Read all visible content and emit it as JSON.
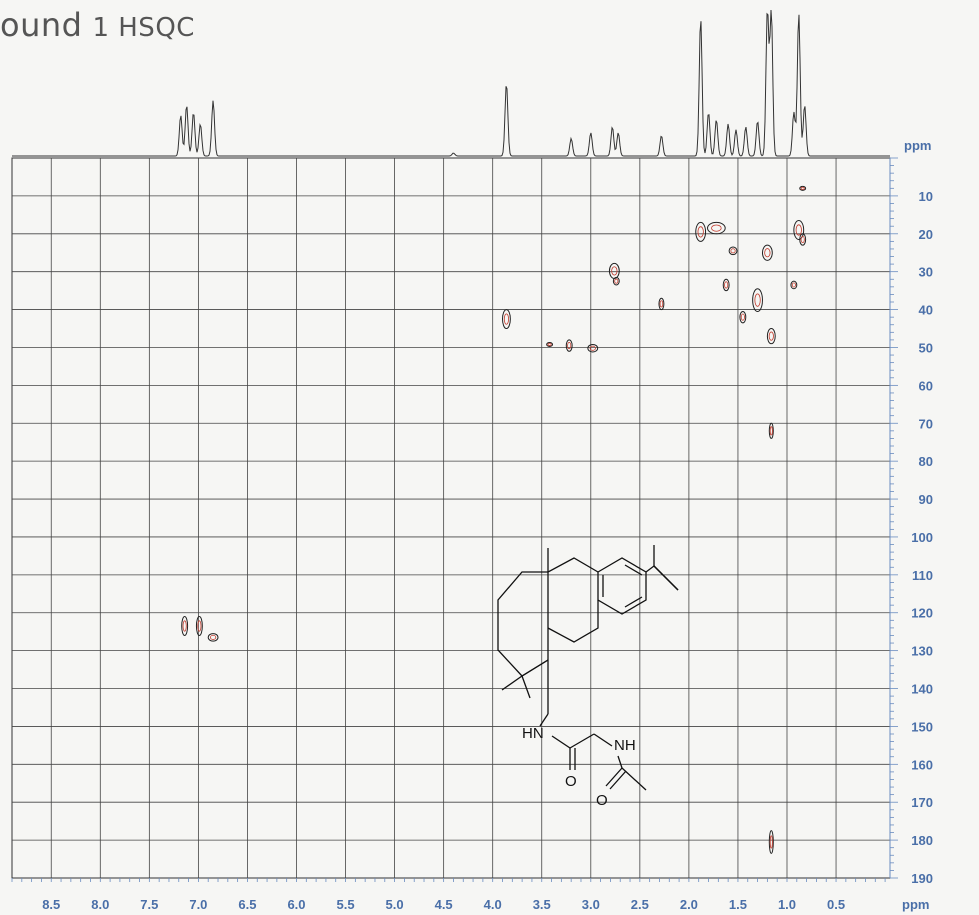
{
  "title": {
    "part1": "ound",
    "part2": "1 HSQC"
  },
  "chart_data": {
    "type": "heatmap",
    "title": "ound  1 HSQC",
    "x_axis": {
      "label": "ppm",
      "reversed": true,
      "range": [
        8.9,
        -0.05
      ],
      "ticks": [
        "8.5",
        "8.0",
        "7.5",
        "7.0",
        "6.5",
        "6.0",
        "5.5",
        "5.0",
        "4.5",
        "4.0",
        "3.5",
        "3.0",
        "2.5",
        "2.0",
        "1.5",
        "1.0",
        "0.5"
      ]
    },
    "y_axis": {
      "label": "ppm",
      "range": [
        0,
        190
      ],
      "side": "right",
      "ticks": [
        "10",
        "20",
        "30",
        "40",
        "50",
        "60",
        "70",
        "80",
        "90",
        "100",
        "110",
        "120",
        "130",
        "140",
        "150",
        "160",
        "170",
        "180",
        "190"
      ]
    },
    "grid": true,
    "proton_projection_peaks": [
      {
        "x": 7.18,
        "h": 0.28
      },
      {
        "x": 7.12,
        "h": 0.35
      },
      {
        "x": 7.05,
        "h": 0.3
      },
      {
        "x": 6.98,
        "h": 0.22
      },
      {
        "x": 6.85,
        "h": 0.38
      },
      {
        "x": 4.4,
        "h": 0.02
      },
      {
        "x": 3.86,
        "h": 0.5
      },
      {
        "x": 3.2,
        "h": 0.12
      },
      {
        "x": 3.0,
        "h": 0.16
      },
      {
        "x": 2.78,
        "h": 0.2
      },
      {
        "x": 2.72,
        "h": 0.16
      },
      {
        "x": 2.28,
        "h": 0.14
      },
      {
        "x": 1.88,
        "h": 0.95
      },
      {
        "x": 1.8,
        "h": 0.3
      },
      {
        "x": 1.72,
        "h": 0.25
      },
      {
        "x": 1.6,
        "h": 0.22
      },
      {
        "x": 1.52,
        "h": 0.18
      },
      {
        "x": 1.42,
        "h": 0.2
      },
      {
        "x": 1.3,
        "h": 0.24
      },
      {
        "x": 1.2,
        "h": 1.0
      },
      {
        "x": 1.16,
        "h": 1.0
      },
      {
        "x": 0.93,
        "h": 0.3
      },
      {
        "x": 0.88,
        "h": 0.98
      },
      {
        "x": 0.82,
        "h": 0.35
      }
    ],
    "correlation_peaks": [
      {
        "x": 7.14,
        "y": 123.5,
        "w": 0.06,
        "hgt": 5
      },
      {
        "x": 6.99,
        "y": 123.5,
        "w": 0.06,
        "hgt": 5
      },
      {
        "x": 6.85,
        "y": 126.5,
        "w": 0.1,
        "hgt": 2
      },
      {
        "x": 3.86,
        "y": 42.5,
        "w": 0.08,
        "hgt": 5
      },
      {
        "x": 3.42,
        "y": 49.2,
        "w": 0.06,
        "hgt": 1
      },
      {
        "x": 3.22,
        "y": 49.5,
        "w": 0.06,
        "hgt": 3
      },
      {
        "x": 2.98,
        "y": 50.2,
        "w": 0.1,
        "hgt": 2
      },
      {
        "x": 2.76,
        "y": 29.8,
        "w": 0.1,
        "hgt": 4
      },
      {
        "x": 2.74,
        "y": 32.5,
        "w": 0.06,
        "hgt": 2
      },
      {
        "x": 2.28,
        "y": 38.5,
        "w": 0.05,
        "hgt": 3
      },
      {
        "x": 1.88,
        "y": 19.5,
        "w": 0.1,
        "hgt": 5
      },
      {
        "x": 1.72,
        "y": 18.5,
        "w": 0.18,
        "hgt": 3
      },
      {
        "x": 1.55,
        "y": 24.5,
        "w": 0.08,
        "hgt": 2
      },
      {
        "x": 1.62,
        "y": 33.5,
        "w": 0.06,
        "hgt": 3
      },
      {
        "x": 1.45,
        "y": 42.0,
        "w": 0.06,
        "hgt": 3
      },
      {
        "x": 1.3,
        "y": 37.5,
        "w": 0.1,
        "hgt": 6
      },
      {
        "x": 1.2,
        "y": 25.0,
        "w": 0.1,
        "hgt": 4
      },
      {
        "x": 1.16,
        "y": 47.0,
        "w": 0.08,
        "hgt": 4
      },
      {
        "x": 0.93,
        "y": 33.5,
        "w": 0.06,
        "hgt": 2
      },
      {
        "x": 0.88,
        "y": 19.0,
        "w": 0.1,
        "hgt": 5
      },
      {
        "x": 0.84,
        "y": 21.5,
        "w": 0.06,
        "hgt": 3
      },
      {
        "x": 1.16,
        "y": 72.0,
        "w": 0.04,
        "hgt": 4
      },
      {
        "x": 1.16,
        "y": 180.5,
        "w": 0.04,
        "hgt": 6
      },
      {
        "x": 0.84,
        "y": 8.0,
        "w": 0.06,
        "hgt": 1
      }
    ],
    "structure_labels": {
      "hn": "HN",
      "nh": "NH",
      "o1": "O",
      "o2": "O"
    }
  }
}
